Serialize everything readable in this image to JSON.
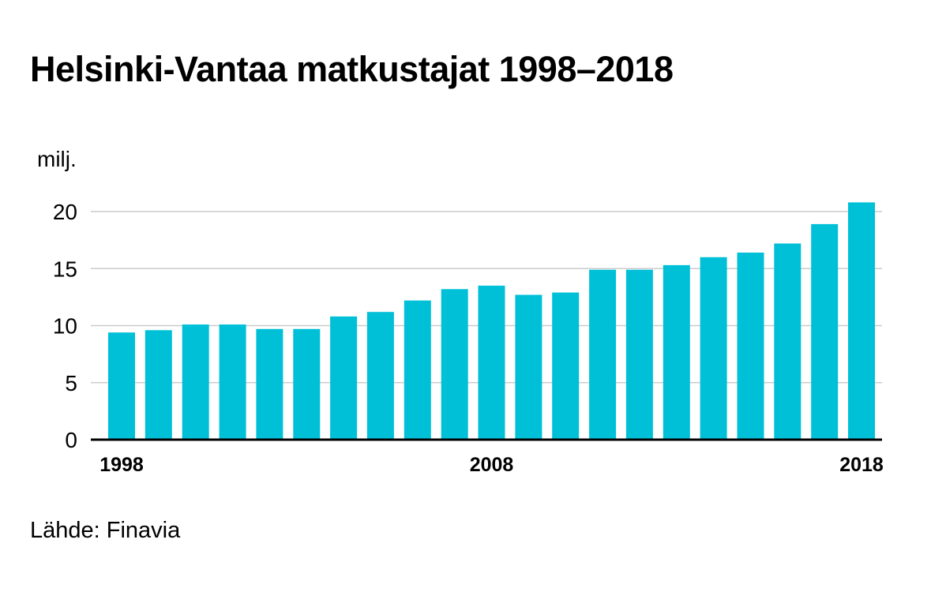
{
  "title": "Helsinki-Vantaa matkustajat 1998–2018",
  "source": "Lähde: Finavia",
  "colors": {
    "bar": "#00c0d8",
    "grid": "#cccccc",
    "baseline": "#000000",
    "text": "#000000"
  },
  "chart_data": {
    "type": "bar",
    "title": "Helsinki-Vantaa matkustajat 1998–2018",
    "xlabel": "",
    "ylabel": "milj.",
    "categories": [
      "1998",
      "1999",
      "2000",
      "2001",
      "2002",
      "2003",
      "2004",
      "2005",
      "2006",
      "2007",
      "2008",
      "2009",
      "2010",
      "2011",
      "2012",
      "2013",
      "2014",
      "2015",
      "2016",
      "2017",
      "2018"
    ],
    "values": [
      9.4,
      9.6,
      10.1,
      10.1,
      9.7,
      9.7,
      10.8,
      11.2,
      12.2,
      13.2,
      13.5,
      12.7,
      12.9,
      14.9,
      14.9,
      15.3,
      16.0,
      16.4,
      17.2,
      18.9,
      20.8
    ],
    "ylim": [
      0,
      20
    ],
    "yticks": [
      0,
      5,
      10,
      15,
      20
    ],
    "xtick_labels": [
      "1998",
      "2008",
      "2018"
    ],
    "grid": true,
    "legend": "none"
  }
}
